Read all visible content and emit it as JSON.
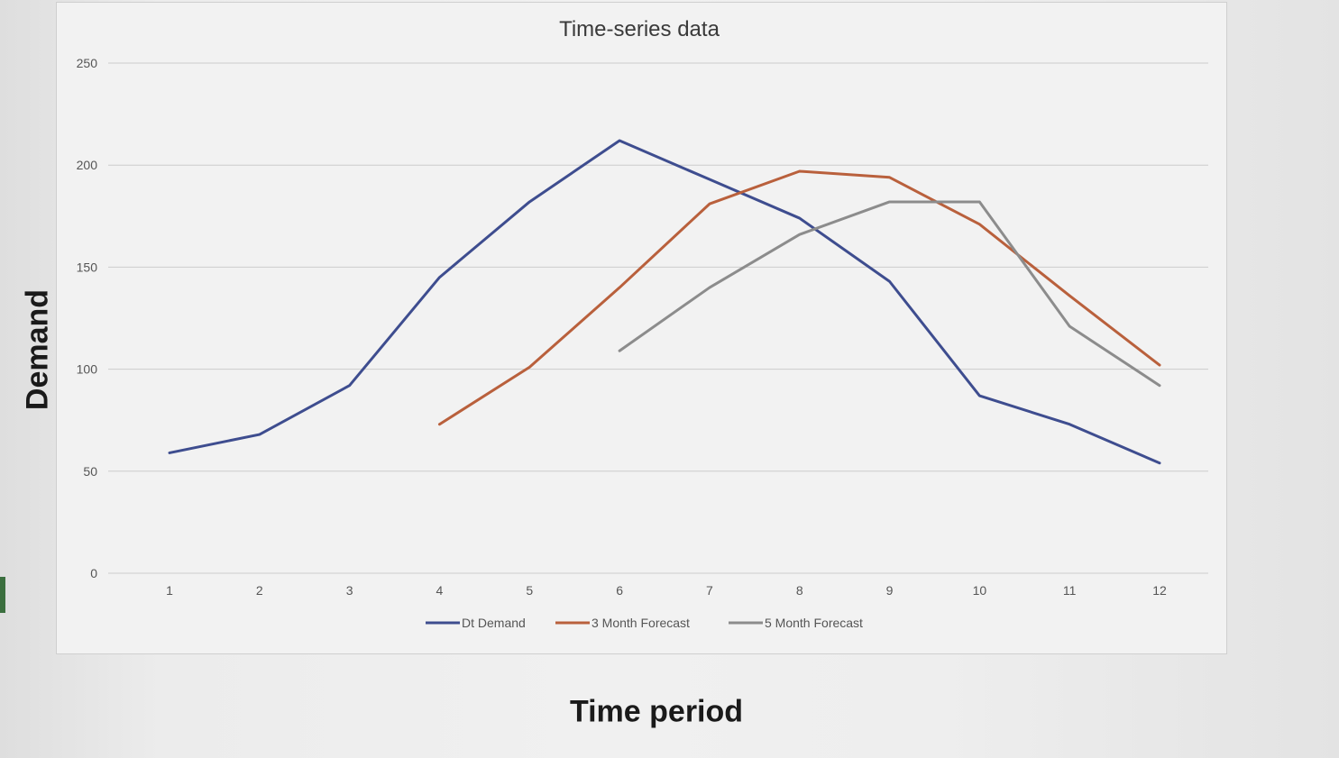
{
  "chart_data": {
    "type": "line",
    "title": "Time-series data",
    "xlabel": "Time period",
    "ylabel": "Demand",
    "categories": [
      "1",
      "2",
      "3",
      "4",
      "5",
      "6",
      "7",
      "8",
      "9",
      "10",
      "11",
      "12"
    ],
    "y_ticks": [
      "0",
      "50",
      "100",
      "150",
      "200",
      "250"
    ],
    "ylim": [
      0,
      250
    ],
    "grid": true,
    "legend_position": "bottom",
    "series": [
      {
        "name": "Dt Demand",
        "color": "#3e4d8f",
        "values": [
          59,
          68,
          92,
          145,
          182,
          212,
          193,
          174,
          143,
          87,
          73,
          54
        ]
      },
      {
        "name": "3 Month Forecast",
        "color": "#b9603c",
        "values": [
          null,
          null,
          null,
          73,
          101,
          140,
          181,
          197,
          194,
          171,
          136,
          102
        ]
      },
      {
        "name": "5 Month Forecast",
        "color": "#8c8c8c",
        "values": [
          null,
          null,
          null,
          null,
          null,
          109,
          140,
          166,
          182,
          182,
          121,
          92
        ]
      }
    ]
  }
}
